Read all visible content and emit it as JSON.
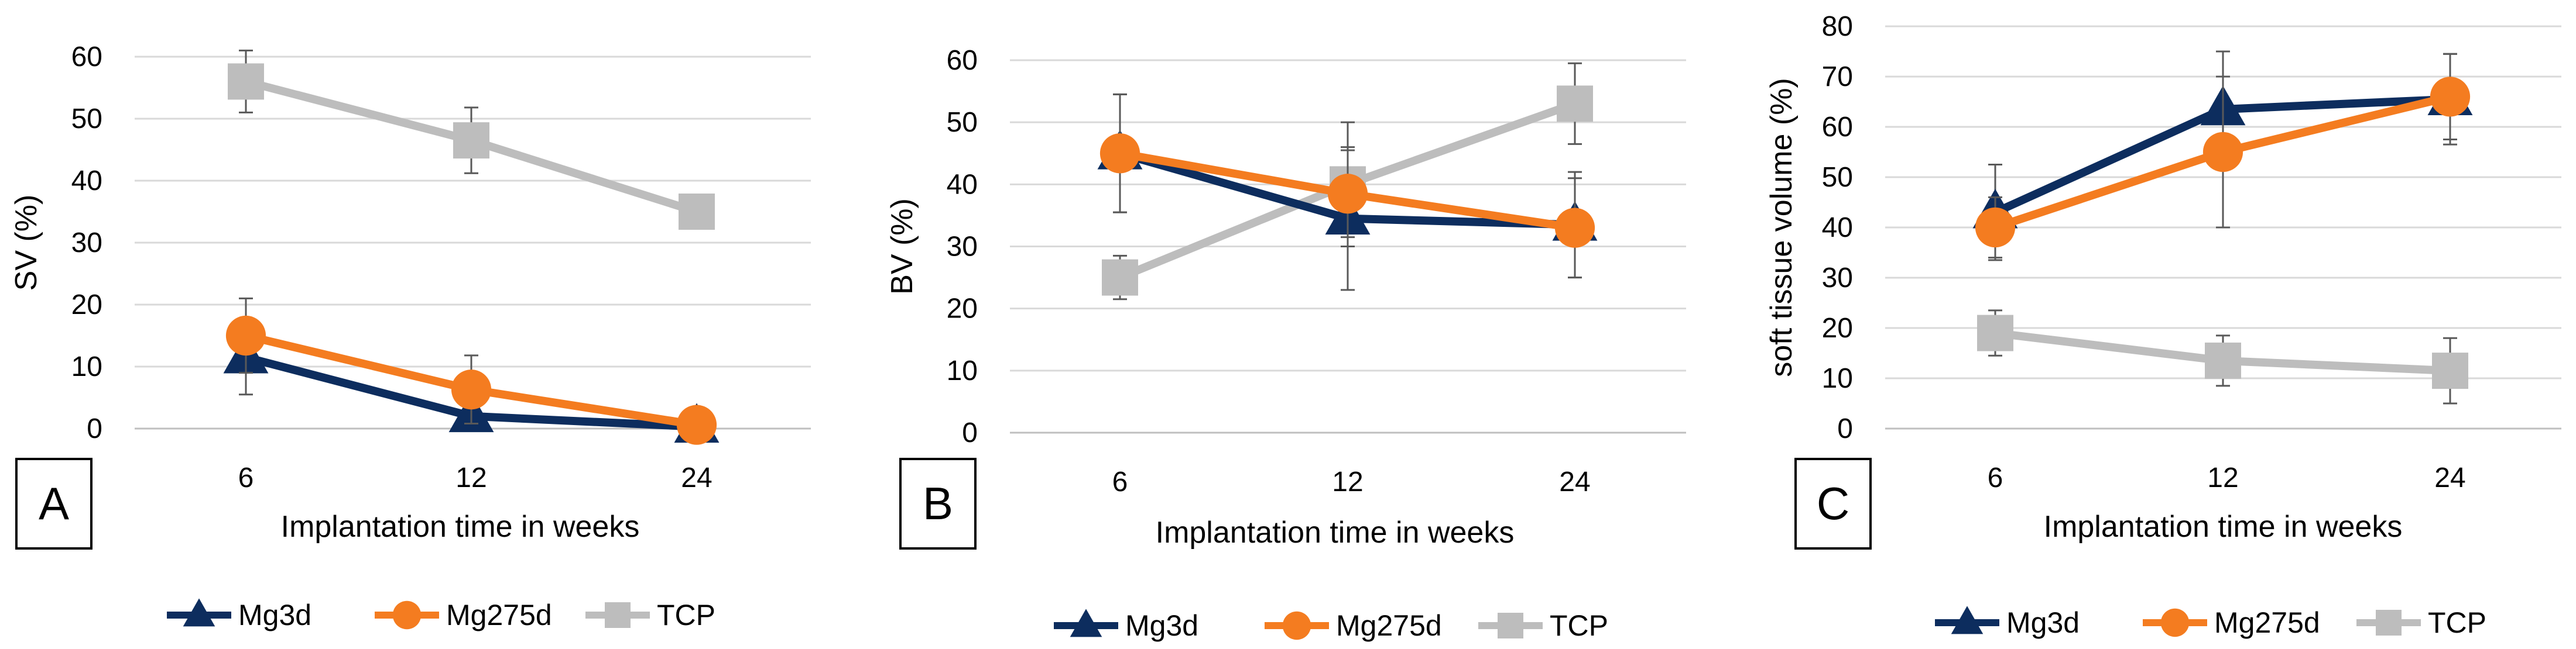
{
  "colors": {
    "Mg3d": "#0d2d5e",
    "Mg275d": "#f47c20",
    "TCP": "#bdbdbd",
    "grid": "#d9d9d9",
    "error": "#595959"
  },
  "chart_data": [
    {
      "type": "line",
      "panel_label": "A",
      "title": "",
      "xlabel": "Implantation time in weeks",
      "ylabel": "SV (%)",
      "categories": [
        "6",
        "12",
        "24"
      ],
      "ylim": [
        0,
        60
      ],
      "yticks": [
        "0",
        "10",
        "20",
        "30",
        "40",
        "50",
        "60"
      ],
      "legend_position": "bottom",
      "series": [
        {
          "name": "Mg3d",
          "marker": "triangle",
          "values": [
            11.5,
            2,
            0.3
          ],
          "error": [
            6,
            0,
            0
          ]
        },
        {
          "name": "Mg275d",
          "marker": "circle",
          "values": [
            15,
            6.3,
            0.6
          ],
          "error": [
            6,
            5.5,
            0
          ]
        },
        {
          "name": "TCP",
          "marker": "square",
          "values": [
            56,
            46.5,
            35
          ],
          "error": [
            5,
            5.3,
            0
          ]
        }
      ]
    },
    {
      "type": "line",
      "panel_label": "B",
      "title": "",
      "xlabel": "Implantation time in weeks",
      "ylabel": "BV (%)",
      "categories": [
        "6",
        "12",
        "24"
      ],
      "ylim": [
        0,
        60
      ],
      "yticks": [
        "0",
        "10",
        "20",
        "30",
        "40",
        "50",
        "60"
      ],
      "legend_position": "bottom",
      "series": [
        {
          "name": "Mg3d",
          "marker": "triangle",
          "values": [
            45,
            34.5,
            33.5
          ],
          "error": [
            9.5,
            11.5,
            8.5
          ]
        },
        {
          "name": "Mg275d",
          "marker": "circle",
          "values": [
            45,
            38.5,
            33
          ],
          "error": [
            9.5,
            7,
            8
          ]
        },
        {
          "name": "TCP",
          "marker": "square",
          "values": [
            25,
            40,
            53
          ],
          "error": [
            3.5,
            10,
            6.5
          ]
        }
      ]
    },
    {
      "type": "line",
      "panel_label": "C",
      "title": "",
      "xlabel": "Implantation time in weeks",
      "ylabel": "soft tissue volume (%)",
      "categories": [
        "6",
        "12",
        "24"
      ],
      "ylim": [
        0,
        80
      ],
      "yticks": [
        "0",
        "10",
        "20",
        "30",
        "40",
        "50",
        "60",
        "70",
        "80"
      ],
      "legend_position": "bottom",
      "series": [
        {
          "name": "Mg3d",
          "marker": "triangle",
          "values": [
            43,
            63.5,
            65.5
          ],
          "error": [
            9.5,
            11.5,
            9
          ]
        },
        {
          "name": "Mg275d",
          "marker": "circle",
          "values": [
            40,
            55,
            66
          ],
          "error": [
            6,
            15,
            8.5
          ]
        },
        {
          "name": "TCP",
          "marker": "square",
          "values": [
            19,
            13.5,
            11.5
          ],
          "error": [
            4.5,
            5,
            6.5
          ]
        }
      ]
    }
  ]
}
